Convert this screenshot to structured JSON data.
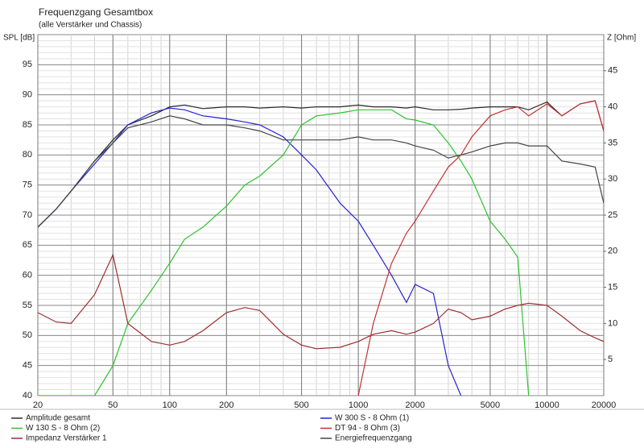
{
  "chart_data": {
    "type": "line",
    "title": "Frequenzgang Gesamtbox",
    "subtitle": "(alle Verstärker und Chassis)",
    "ylabel": "SPL [dB]",
    "y2label": "Z [Ohm]",
    "xscale": "log",
    "grid": true,
    "x": [
      20,
      25,
      30,
      40,
      50,
      60,
      80,
      100,
      120,
      150,
      200,
      250,
      300,
      400,
      500,
      600,
      800,
      1000,
      1200,
      1500,
      1800,
      2000,
      2500,
      3000,
      3500,
      4000,
      5000,
      6000,
      7000,
      8000,
      10000,
      12000,
      15000,
      18000,
      20000
    ],
    "xlim": [
      20,
      20000
    ],
    "xticks": [
      20,
      50,
      100,
      200,
      500,
      1000,
      2000,
      5000,
      10000,
      20000
    ],
    "ylim": [
      40,
      100
    ],
    "yticks": [
      40,
      45,
      50,
      55,
      60,
      65,
      70,
      75,
      80,
      85,
      90,
      95
    ],
    "y2lim": [
      0,
      50
    ],
    "y2ticks": [
      5,
      10,
      15,
      20,
      25,
      30,
      35,
      40,
      45
    ],
    "series": [
      {
        "name": "Amplitude gesamt",
        "color": "#2a2a2a",
        "values": [
          68,
          71,
          74,
          79,
          82.5,
          85,
          86.5,
          88,
          88.3,
          87.7,
          88,
          88,
          87.8,
          88,
          87.8,
          88,
          88,
          88.3,
          88,
          88,
          87.8,
          88,
          87.5,
          87.5,
          87.6,
          87.8,
          88,
          88,
          88,
          87.5,
          88.8,
          86.5,
          88.5,
          89,
          84
        ]
      },
      {
        "name": "W 300 S - 8 Ohm (1)",
        "color": "#2424d0",
        "values": [
          68,
          71,
          74,
          78.5,
          82,
          85,
          87,
          87.8,
          87.5,
          86.5,
          86,
          85.5,
          85,
          83,
          80,
          77.5,
          72,
          69,
          65,
          60,
          55.5,
          58.5,
          57,
          45,
          40,
          null,
          null,
          null,
          null,
          null,
          null,
          null,
          null,
          null,
          null
        ]
      },
      {
        "name": "W 130 S - 8 Ohm (2)",
        "color": "#2ec22e",
        "values": [
          40,
          40,
          40,
          40,
          45,
          52,
          57.5,
          62,
          66,
          68,
          71.5,
          75,
          76.5,
          80,
          85,
          86.5,
          87,
          87.5,
          87.5,
          87.5,
          86,
          85.8,
          85,
          82,
          79,
          76,
          69,
          66,
          63,
          40,
          null,
          null,
          null,
          null,
          null
        ]
      },
      {
        "name": "DT 94 - 8 Ohm (3)",
        "color": "#c83030",
        "values": [
          null,
          null,
          null,
          null,
          null,
          null,
          null,
          null,
          null,
          null,
          null,
          null,
          null,
          null,
          null,
          null,
          null,
          40,
          52,
          62,
          67,
          69,
          74,
          78,
          80,
          83,
          86.5,
          87.5,
          88,
          86.5,
          88.5,
          86.5,
          88.5,
          89,
          84
        ]
      },
      {
        "name": "Impedanz Verstärker 1",
        "color": "#9c2f2f",
        "axis": "y2",
        "values": [
          11.5,
          10.2,
          10,
          14,
          19.5,
          10,
          7.5,
          7,
          7.5,
          9,
          11.5,
          12.2,
          11.8,
          8.5,
          7,
          6.5,
          6.7,
          7.5,
          8.5,
          9,
          8.5,
          8.8,
          10,
          12,
          11.5,
          10.5,
          11,
          12,
          12.5,
          12.8,
          12.5,
          11,
          9,
          8,
          7.5
        ]
      },
      {
        "name": "Energiefrequenzgang",
        "color": "#454545",
        "values": [
          68,
          71,
          74,
          79,
          82,
          84.5,
          85.5,
          86.5,
          86,
          85,
          85,
          84.5,
          84,
          82.5,
          82.5,
          82.5,
          82.5,
          83,
          82.5,
          82.5,
          82,
          81.5,
          80.8,
          79.5,
          80,
          80.5,
          81.5,
          82,
          82,
          81.5,
          81.5,
          79,
          78.5,
          78,
          72
        ]
      }
    ]
  }
}
